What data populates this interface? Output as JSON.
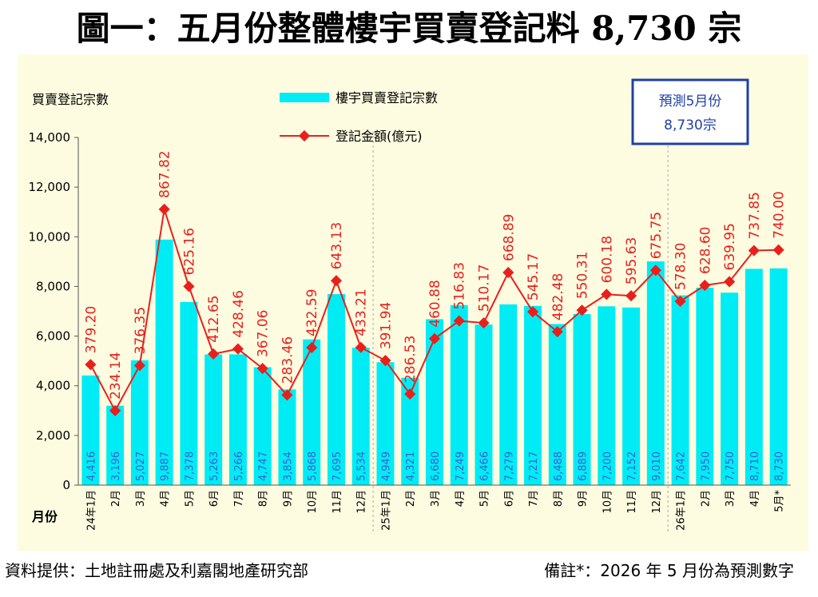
{
  "title": "圖一：五月份整體樓宇買賣登記料 8,730 宗",
  "footer": {
    "source": "資料提供：土地註冊處及利嘉閣地產研究部",
    "note": "備註*：2026 年 5 月份為預測數字"
  },
  "forecast_box": {
    "line1": "預測5月份",
    "line2": "8,730宗"
  },
  "colors": {
    "bars": "#00ecf5",
    "line": "#e8201c",
    "bar_labels": "#3a5fd0",
    "box_border": "#1f3fa8",
    "panel": "#fdfce0"
  },
  "chart_data": {
    "type": "bar",
    "ylabel": "買賣登記宗數",
    "xlabel": "月份",
    "ylim": [
      0,
      14000
    ],
    "yticks": [
      "0",
      "2,000",
      "4,000",
      "6,000",
      "8,000",
      "10,000",
      "12,000",
      "14,000"
    ],
    "legend": {
      "bars": "樓宇買賣登記宗數",
      "line": "登記金額(億元)"
    },
    "categories": [
      "24年1月",
      "2月",
      "3月",
      "4月",
      "5月",
      "6月",
      "7月",
      "8月",
      "9月",
      "10月",
      "11月",
      "12月",
      "25年1月",
      "2月",
      "3月",
      "4月",
      "5月",
      "6月",
      "7月",
      "8月",
      "9月",
      "10月",
      "11月",
      "12月",
      "26年1月",
      "2月",
      "3月",
      "4月",
      "5月*"
    ],
    "series": [
      {
        "name": "樓宇買賣登記宗數",
        "type": "bar",
        "values": [
          4416,
          3196,
          5027,
          9887,
          7378,
          5263,
          5266,
          4747,
          3854,
          5868,
          7695,
          5534,
          4949,
          4321,
          6680,
          7249,
          6466,
          7279,
          7217,
          6488,
          6889,
          7200,
          7152,
          9010,
          7642,
          7950,
          7750,
          8710,
          8730
        ],
        "labels": [
          "4,416",
          "3,196",
          "5,027",
          "9,887",
          "7,378",
          "5,263",
          "5,266",
          "4,747",
          "3,854",
          "5,868",
          "7,695",
          "5,534",
          "4,949",
          "4,321",
          "6,680",
          "7,249",
          "6,466",
          "7,279",
          "7,217",
          "6,488",
          "6,889",
          "7,200",
          "7,152",
          "9,010",
          "7,642",
          "7,950",
          "7,750",
          "8,710",
          "8,730"
        ]
      },
      {
        "name": "登記金額(億元)",
        "type": "line",
        "values": [
          379.2,
          234.14,
          376.35,
          867.82,
          625.16,
          412.65,
          428.46,
          367.06,
          283.46,
          432.59,
          643.13,
          433.21,
          391.94,
          286.53,
          460.88,
          516.83,
          510.17,
          668.89,
          545.17,
          482.48,
          550.31,
          600.18,
          595.63,
          675.75,
          578.3,
          628.6,
          639.95,
          737.85,
          740.0
        ],
        "labels": [
          "379.20",
          "234.14",
          "376.35",
          "867.82",
          "625.16",
          "412.65",
          "428.46",
          "367.06",
          "283.46",
          "432.59",
          "643.13",
          "433.21",
          "391.94",
          "286.53",
          "460.88",
          "516.83",
          "510.17",
          "668.89",
          "545.17",
          "482.48",
          "550.31",
          "600.18",
          "595.63",
          "675.75",
          "578.30",
          "628.60",
          "639.95",
          "737.85",
          "740.00"
        ]
      }
    ]
  }
}
